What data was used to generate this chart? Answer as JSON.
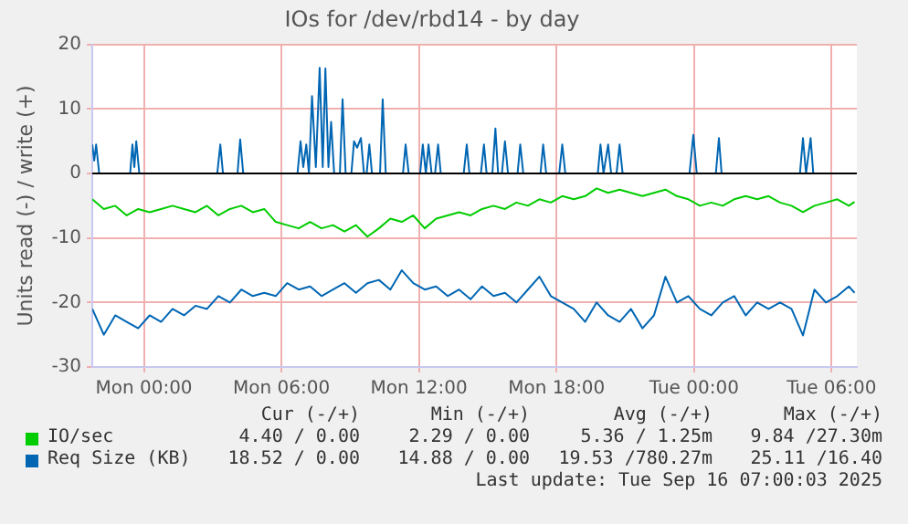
{
  "chart_data": {
    "type": "line",
    "title": "IOs for /dev/rbd14 - by day",
    "ylabel": "Units read (-) / write (+)",
    "xlim": [
      "2025-09-14T21:45",
      "2025-09-16T07:06"
    ],
    "xticks": [
      {
        "value": "2025-09-15T00:00",
        "label": "Mon 00:00"
      },
      {
        "value": "2025-09-15T06:00",
        "label": "Mon 06:00"
      },
      {
        "value": "2025-09-15T12:00",
        "label": "Mon 12:00"
      },
      {
        "value": "2025-09-15T18:00",
        "label": "Mon 18:00"
      },
      {
        "value": "2025-09-16T00:00",
        "label": "Tue 00:00"
      },
      {
        "value": "2025-09-16T06:00",
        "label": "Tue 06:00"
      }
    ],
    "ylim": [
      -30,
      20
    ],
    "yticks": [
      -30,
      -20,
      -10,
      0,
      10,
      20
    ],
    "grid": true,
    "legend": "bottom",
    "marker": "none",
    "line_style": "solid",
    "ref_lines": [
      {
        "axis": "y",
        "value": 0,
        "color": "#000000"
      }
    ],
    "series": [
      {
        "name": "IO/sec",
        "color": "#00cc00",
        "x": [
          "2025-09-14T21:45",
          "2025-09-14T22:15",
          "2025-09-14T22:45",
          "2025-09-14T23:15",
          "2025-09-14T23:45",
          "2025-09-15T00:15",
          "2025-09-15T00:45",
          "2025-09-15T01:15",
          "2025-09-15T01:45",
          "2025-09-15T02:15",
          "2025-09-15T02:45",
          "2025-09-15T03:15",
          "2025-09-15T03:45",
          "2025-09-15T04:15",
          "2025-09-15T04:45",
          "2025-09-15T05:15",
          "2025-09-15T05:45",
          "2025-09-15T06:15",
          "2025-09-15T06:45",
          "2025-09-15T07:15",
          "2025-09-15T07:45",
          "2025-09-15T08:15",
          "2025-09-15T08:45",
          "2025-09-15T09:15",
          "2025-09-15T09:45",
          "2025-09-15T10:15",
          "2025-09-15T10:45",
          "2025-09-15T11:15",
          "2025-09-15T11:45",
          "2025-09-15T12:15",
          "2025-09-15T12:45",
          "2025-09-15T13:15",
          "2025-09-15T13:45",
          "2025-09-15T14:15",
          "2025-09-15T14:45",
          "2025-09-15T15:15",
          "2025-09-15T15:45",
          "2025-09-15T16:15",
          "2025-09-15T16:45",
          "2025-09-15T17:15",
          "2025-09-15T17:45",
          "2025-09-15T18:15",
          "2025-09-15T18:45",
          "2025-09-15T19:15",
          "2025-09-15T19:45",
          "2025-09-15T20:15",
          "2025-09-15T20:45",
          "2025-09-15T21:15",
          "2025-09-15T21:45",
          "2025-09-15T22:15",
          "2025-09-15T22:45",
          "2025-09-15T23:15",
          "2025-09-15T23:45",
          "2025-09-16T00:15",
          "2025-09-16T00:45",
          "2025-09-16T01:15",
          "2025-09-16T01:45",
          "2025-09-16T02:15",
          "2025-09-16T02:45",
          "2025-09-16T03:15",
          "2025-09-16T03:45",
          "2025-09-16T04:15",
          "2025-09-16T04:45",
          "2025-09-16T05:15",
          "2025-09-16T05:45",
          "2025-09-16T06:15",
          "2025-09-16T06:45",
          "2025-09-16T07:00"
        ],
        "values": [
          -4,
          -5.5,
          -5,
          -6.5,
          -5.5,
          -6,
          -5.5,
          -5,
          -5.5,
          -6,
          -5,
          -6.5,
          -5.5,
          -5,
          -6,
          -5.5,
          -7.5,
          -8,
          -8.5,
          -7.5,
          -8.5,
          -8,
          -9,
          -8,
          -9.8,
          -8.5,
          -7,
          -7.5,
          -6.5,
          -8.5,
          -7,
          -6.5,
          -6,
          -6.5,
          -5.5,
          -5,
          -5.5,
          -4.5,
          -5,
          -4,
          -4.5,
          -3.5,
          -4,
          -3.5,
          -2.3,
          -3,
          -2.5,
          -3,
          -3.5,
          -3,
          -2.5,
          -3.5,
          -4,
          -5,
          -4.5,
          -5,
          -4,
          -3.5,
          -4,
          -3.5,
          -4.5,
          -5,
          -6,
          -5,
          -4.5,
          -4,
          -5,
          -4.4
        ]
      },
      {
        "name": "Req Size (KB)",
        "color": "#0066b3",
        "x": [
          "2025-09-14T21:45",
          "2025-09-14T22:15",
          "2025-09-14T22:45",
          "2025-09-14T23:15",
          "2025-09-14T23:45",
          "2025-09-15T00:15",
          "2025-09-15T00:45",
          "2025-09-15T01:15",
          "2025-09-15T01:45",
          "2025-09-15T02:15",
          "2025-09-15T02:45",
          "2025-09-15T03:15",
          "2025-09-15T03:45",
          "2025-09-15T04:15",
          "2025-09-15T04:45",
          "2025-09-15T05:15",
          "2025-09-15T05:45",
          "2025-09-15T06:15",
          "2025-09-15T06:45",
          "2025-09-15T07:15",
          "2025-09-15T07:45",
          "2025-09-15T08:15",
          "2025-09-15T08:45",
          "2025-09-15T09:15",
          "2025-09-15T09:45",
          "2025-09-15T10:15",
          "2025-09-15T10:45",
          "2025-09-15T11:15",
          "2025-09-15T11:45",
          "2025-09-15T12:15",
          "2025-09-15T12:45",
          "2025-09-15T13:15",
          "2025-09-15T13:45",
          "2025-09-15T14:15",
          "2025-09-15T14:45",
          "2025-09-15T15:15",
          "2025-09-15T15:45",
          "2025-09-15T16:15",
          "2025-09-15T16:45",
          "2025-09-15T17:15",
          "2025-09-15T17:45",
          "2025-09-15T18:15",
          "2025-09-15T18:45",
          "2025-09-15T19:15",
          "2025-09-15T19:45",
          "2025-09-15T20:15",
          "2025-09-15T20:45",
          "2025-09-15T21:15",
          "2025-09-15T21:45",
          "2025-09-15T22:15",
          "2025-09-15T22:45",
          "2025-09-15T23:15",
          "2025-09-15T23:45",
          "2025-09-16T00:15",
          "2025-09-16T00:45",
          "2025-09-16T01:15",
          "2025-09-16T01:45",
          "2025-09-16T02:15",
          "2025-09-16T02:45",
          "2025-09-16T03:15",
          "2025-09-16T03:45",
          "2025-09-16T04:15",
          "2025-09-16T04:45",
          "2025-09-16T05:15",
          "2025-09-16T05:45",
          "2025-09-16T06:15",
          "2025-09-16T06:45",
          "2025-09-16T07:00"
        ],
        "values": [
          -21,
          -25,
          -22,
          -23,
          -24,
          -22,
          -23,
          -21,
          -22,
          -20.5,
          -21,
          -19,
          -20,
          -18,
          -19,
          -18.5,
          -19,
          -17,
          -18,
          -17.5,
          -19,
          -18,
          -17,
          -18.5,
          -17,
          -16.5,
          -18,
          -15,
          -17,
          -18,
          -17.5,
          -19,
          -18,
          -19.5,
          -17.5,
          -19,
          -18.5,
          -20,
          -18,
          -16,
          -19,
          -20,
          -21,
          -23,
          -20,
          -22,
          -23,
          -21,
          -24,
          -22,
          -16,
          -20,
          -19,
          -21,
          -22,
          -20,
          -19,
          -22,
          -20,
          -21,
          -20,
          -21,
          -25.1,
          -18,
          -20,
          -19,
          -17.5,
          -18.5
        ]
      },
      {
        "color": "#0066b3",
        "x": [
          "2025-09-14T21:45",
          "2025-09-14T21:50",
          "2025-09-14T21:55",
          "2025-09-14T22:03",
          "2025-09-14T23:24",
          "2025-09-14T23:30",
          "2025-09-14T23:35",
          "2025-09-14T23:40",
          "2025-09-14T23:48",
          "2025-09-15T03:12",
          "2025-09-15T03:20",
          "2025-09-15T03:27",
          "2025-09-15T04:05",
          "2025-09-15T04:12",
          "2025-09-15T04:20",
          "2025-09-15T06:42",
          "2025-09-15T06:50",
          "2025-09-15T06:57",
          "2025-09-15T07:05",
          "2025-09-15T07:12",
          "2025-09-15T07:20",
          "2025-09-15T07:30",
          "2025-09-15T07:40",
          "2025-09-15T07:48",
          "2025-09-15T07:55",
          "2025-09-15T08:03",
          "2025-09-15T08:10",
          "2025-09-15T08:18",
          "2025-09-15T08:33",
          "2025-09-15T08:40",
          "2025-09-15T08:48",
          "2025-09-15T09:03",
          "2025-09-15T09:10",
          "2025-09-15T09:18",
          "2025-09-15T09:28",
          "2025-09-15T09:36",
          "2025-09-15T09:43",
          "2025-09-15T09:50",
          "2025-09-15T09:57",
          "2025-09-15T10:18",
          "2025-09-15T10:25",
          "2025-09-15T10:33",
          "2025-09-15T11:18",
          "2025-09-15T11:25",
          "2025-09-15T11:33",
          "2025-09-15T12:03",
          "2025-09-15T12:10",
          "2025-09-15T12:18",
          "2025-09-15T12:25",
          "2025-09-15T12:33",
          "2025-09-15T12:42",
          "2025-09-15T12:50",
          "2025-09-15T12:57",
          "2025-09-15T13:57",
          "2025-09-15T14:05",
          "2025-09-15T14:12",
          "2025-09-15T14:42",
          "2025-09-15T14:50",
          "2025-09-15T14:57",
          "2025-09-15T15:12",
          "2025-09-15T15:20",
          "2025-09-15T15:27",
          "2025-09-15T15:37",
          "2025-09-15T15:45",
          "2025-09-15T15:53",
          "2025-09-15T16:18",
          "2025-09-15T16:25",
          "2025-09-15T16:33",
          "2025-09-15T17:18",
          "2025-09-15T17:25",
          "2025-09-15T17:33",
          "2025-09-15T18:07",
          "2025-09-15T18:15",
          "2025-09-15T18:23",
          "2025-09-15T19:48",
          "2025-09-15T19:55",
          "2025-09-15T20:03",
          "2025-09-15T20:15",
          "2025-09-15T20:23",
          "2025-09-15T20:37",
          "2025-09-15T20:45",
          "2025-09-15T20:53",
          "2025-09-15T23:48",
          "2025-09-15T23:58",
          "2025-09-16T00:07",
          "2025-09-16T00:57",
          "2025-09-16T01:05",
          "2025-09-16T01:12",
          "2025-09-16T04:37",
          "2025-09-16T04:45",
          "2025-09-16T04:53",
          "2025-09-16T05:05",
          "2025-09-16T05:12",
          "2025-09-16T07:00"
        ],
        "values": [
          4.5,
          2,
          4.5,
          0,
          0,
          4.5,
          1,
          5,
          0,
          0,
          4.5,
          0,
          0,
          5.3,
          0,
          0,
          5,
          1,
          4.5,
          0,
          12,
          1,
          16.4,
          1,
          16.3,
          1,
          8,
          0,
          0,
          11.5,
          0,
          0,
          5,
          4,
          5.5,
          0,
          0,
          4.5,
          0,
          0,
          11.5,
          0,
          0,
          4.5,
          0,
          0,
          4.5,
          0,
          4.5,
          0,
          0,
          4.5,
          0,
          0,
          4.5,
          0,
          0,
          4.5,
          0,
          0,
          7,
          0,
          0,
          5,
          0,
          0,
          4.5,
          0,
          0,
          4.5,
          0,
          0,
          4.5,
          0,
          0,
          4.5,
          0,
          4.5,
          0,
          0,
          4.5,
          0,
          0,
          6,
          0,
          0,
          5.5,
          0,
          0,
          5.5,
          0,
          5.5,
          0,
          0
        ]
      }
    ],
    "annotations": [
      "Cur (-/+)",
      "Min (-/+)",
      "Avg (-/+)",
      "Max (-/+)",
      "4.40 / 0.00",
      "2.29 / 0.00",
      "5.36 / 1.25m",
      "9.84 /27.30m",
      "18.52 / 0.00",
      "14.88 / 0.00",
      "19.53 /780.27m",
      "25.11 /16.40",
      "Last update: Tue Sep 16 07:00:03 2025"
    ]
  }
}
